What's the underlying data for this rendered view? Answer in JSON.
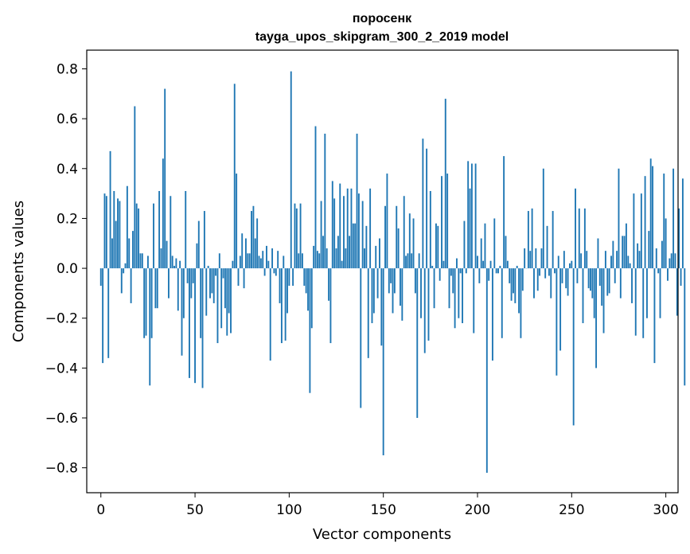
{
  "chart_data": {
    "type": "bar",
    "title": "поросенк",
    "subtitle": "tayga_upos_skipgram_300_2_2019 model",
    "xlabel": "Vector components",
    "ylabel": "Components values",
    "xlim": [
      -7.5,
      306.5
    ],
    "ylim": [
      -0.9,
      0.875
    ],
    "xticks": [
      0,
      50,
      100,
      150,
      200,
      250,
      300
    ],
    "yticks": [
      -0.8,
      -0.6,
      -0.4,
      -0.2,
      0.0,
      0.2,
      0.4,
      0.6,
      0.8
    ],
    "ytick_labels": [
      "−0.8",
      "−0.6",
      "−0.4",
      "−0.2",
      "0.0",
      "0.2",
      "0.4",
      "0.6",
      "0.8"
    ],
    "grid": false,
    "bar_color": "#1f77b4",
    "values": [
      -0.07,
      -0.38,
      0.3,
      0.29,
      -0.36,
      0.47,
      0.12,
      0.31,
      0.19,
      0.28,
      0.27,
      -0.1,
      -0.02,
      0.02,
      0.33,
      0.12,
      -0.14,
      0.15,
      0.65,
      0.26,
      0.24,
      0.06,
      0.06,
      -0.28,
      -0.27,
      0.05,
      -0.47,
      -0.28,
      0.26,
      -0.16,
      -0.16,
      0.31,
      0.08,
      0.44,
      0.72,
      0.11,
      -0.12,
      0.29,
      0.05,
      0.01,
      0.04,
      -0.17,
      0.03,
      -0.35,
      -0.2,
      0.31,
      -0.06,
      -0.44,
      -0.12,
      -0.06,
      -0.46,
      0.1,
      0.19,
      -0.28,
      -0.48,
      0.23,
      -0.19,
      0.01,
      -0.12,
      -0.1,
      -0.14,
      -0.03,
      -0.3,
      0.06,
      -0.24,
      -0.04,
      -0.16,
      -0.27,
      -0.18,
      -0.26,
      0.03,
      0.74,
      0.38,
      -0.07,
      0.05,
      0.14,
      -0.08,
      0.12,
      0.06,
      0.06,
      0.23,
      0.25,
      0.12,
      0.2,
      0.05,
      0.04,
      0.07,
      -0.03,
      0.09,
      0.03,
      -0.37,
      0.08,
      -0.02,
      -0.03,
      0.07,
      -0.14,
      -0.3,
      0.05,
      -0.29,
      -0.18,
      -0.07,
      0.79,
      -0.07,
      0.26,
      0.24,
      0.06,
      0.26,
      0.06,
      -0.07,
      -0.1,
      -0.17,
      -0.5,
      -0.24,
      0.09,
      0.57,
      0.07,
      0.06,
      0.27,
      0.13,
      0.54,
      0.08,
      -0.13,
      -0.3,
      0.35,
      0.28,
      0.08,
      0.13,
      0.34,
      0.03,
      0.29,
      0.08,
      0.32,
      0.13,
      0.32,
      0.18,
      0.18,
      0.54,
      0.3,
      -0.56,
      0.27,
      0.08,
      0.17,
      -0.36,
      0.32,
      -0.22,
      -0.18,
      0.09,
      -0.12,
      0.12,
      -0.31,
      -0.75,
      0.25,
      0.38,
      -0.1,
      -0.06,
      -0.18,
      -0.1,
      0.25,
      0.16,
      -0.15,
      -0.21,
      0.29,
      0.05,
      0.06,
      0.22,
      0.06,
      0.2,
      -0.1,
      -0.6,
      0.06,
      -0.2,
      0.52,
      -0.34,
      0.48,
      -0.29,
      0.31,
      0.01,
      -0.16,
      0.18,
      0.17,
      -0.05,
      0.37,
      0.03,
      0.68,
      0.38,
      -0.16,
      -0.03,
      -0.1,
      -0.24,
      0.04,
      -0.2,
      -0.02,
      -0.22,
      0.19,
      -0.02,
      0.43,
      0.32,
      0.42,
      -0.26,
      0.42,
      0.05,
      -0.06,
      0.12,
      0.03,
      0.18,
      -0.82,
      -0.05,
      0.03,
      -0.37,
      0.2,
      -0.02,
      -0.02,
      0.01,
      -0.28,
      0.45,
      0.13,
      0.03,
      -0.06,
      -0.13,
      -0.1,
      -0.14,
      0.01,
      -0.18,
      -0.28,
      -0.09,
      0.08,
      0.0,
      0.23,
      0.07,
      0.24,
      -0.12,
      0.08,
      -0.09,
      -0.03,
      0.08,
      0.4,
      -0.04,
      0.17,
      -0.03,
      -0.12,
      0.23,
      -0.02,
      -0.43,
      0.05,
      -0.33,
      -0.06,
      0.07,
      -0.08,
      -0.11,
      0.02,
      0.03,
      -0.63,
      0.32,
      -0.06,
      0.24,
      0.06,
      -0.22,
      0.24,
      0.07,
      -0.08,
      -0.09,
      -0.12,
      -0.2,
      -0.4,
      0.12,
      -0.07,
      -0.15,
      -0.26,
      0.07,
      -0.11,
      -0.1,
      0.05,
      0.11,
      -0.06,
      0.07,
      0.4,
      -0.12,
      0.13,
      0.13,
      0.18,
      0.05,
      0.02,
      -0.14,
      0.3,
      -0.27,
      0.1,
      0.07,
      0.3,
      -0.28,
      0.37,
      -0.2,
      0.15,
      0.44,
      0.41,
      -0.38,
      0.08,
      -0.02,
      -0.2,
      0.11,
      0.38,
      0.2,
      -0.05,
      0.04,
      0.06,
      0.4,
      0.06,
      -0.19,
      0.24,
      -0.07,
      0.36,
      -0.47
    ]
  }
}
